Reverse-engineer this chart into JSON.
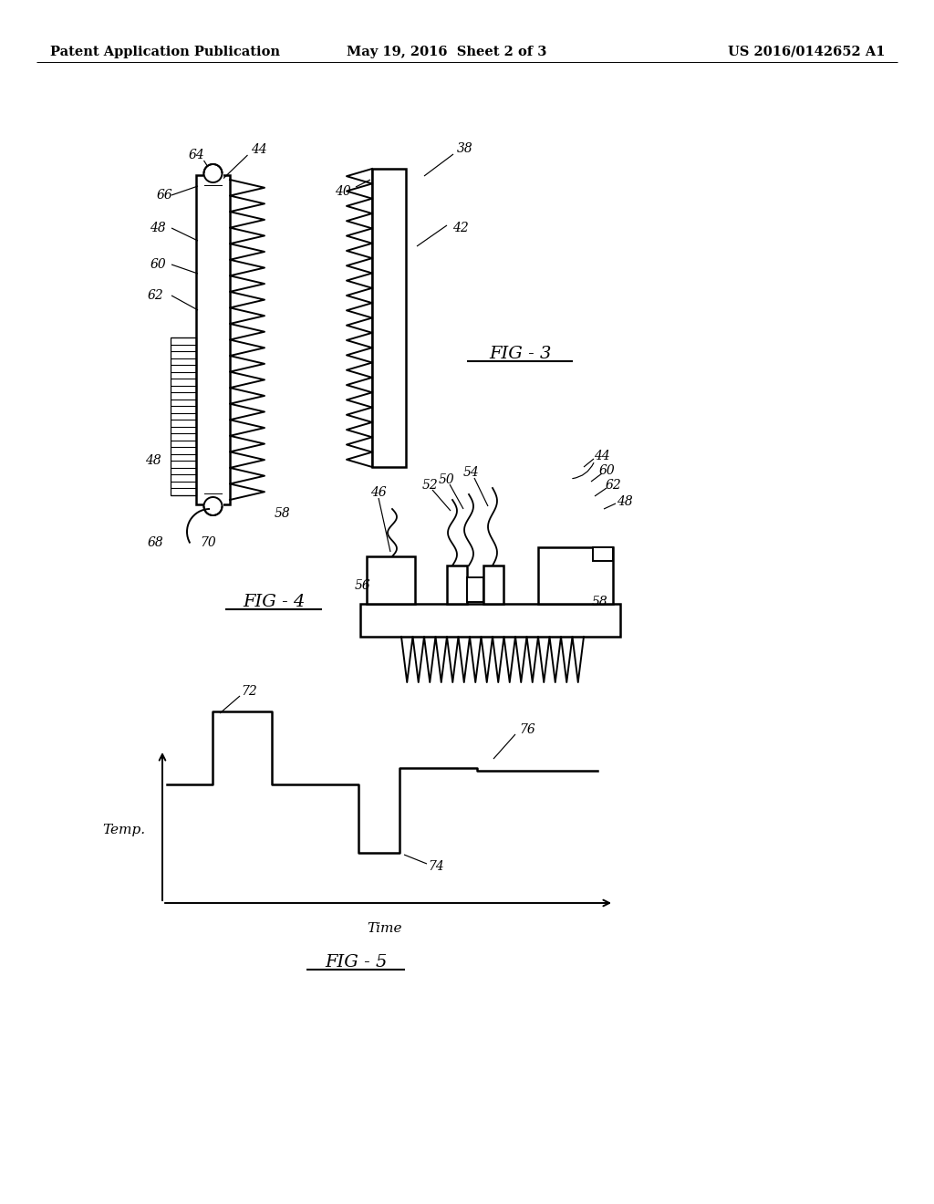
{
  "bg_color": "#ffffff",
  "line_color": "#000000",
  "header_left": "Patent Application Publication",
  "header_mid": "May 19, 2016  Sheet 2 of 3",
  "header_right": "US 2016/0142652 A1",
  "fig3_label": "FIG - 3",
  "fig4_label": "FIG - 4",
  "fig5_label": "FIG - 5",
  "fig5_xlabel": "Time",
  "fig5_ylabel": "Temp."
}
